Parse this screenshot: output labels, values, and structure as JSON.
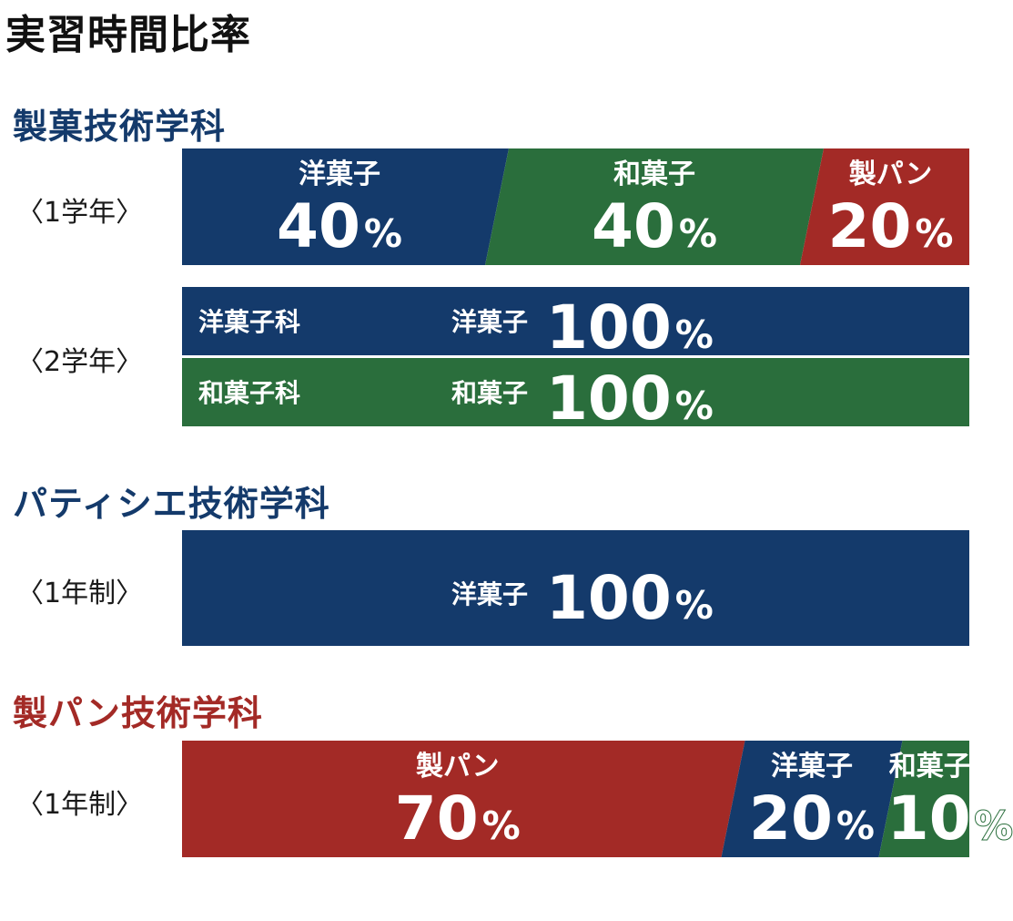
{
  "title": "実習時間比率",
  "colors": {
    "navy": "#143a6b",
    "green": "#2a6e3c",
    "red": "#a32a26"
  },
  "sections": [
    {
      "title": "製菓技術学科",
      "color": "#143a6b"
    },
    {
      "title": "パティシエ技術学科",
      "color": "#143a6b"
    },
    {
      "title": "製パン技術学科",
      "color": "#a32a26"
    }
  ],
  "row_labels": [
    "〈1学年〉",
    "〈2学年〉",
    "〈1年制〉",
    "〈1年制〉"
  ],
  "chart_data": [
    {
      "type": "bar",
      "stacked": true,
      "unit": "%",
      "section": "製菓技術学科",
      "row": "〈1学年〉",
      "segments": [
        {
          "name": "洋菓子",
          "value": 40,
          "color": "#143a6b"
        },
        {
          "name": "和菓子",
          "value": 40,
          "color": "#2a6e3c"
        },
        {
          "name": "製パン",
          "value": 20,
          "color": "#a32a26"
        }
      ]
    },
    {
      "type": "bar",
      "stacked": true,
      "unit": "%",
      "section": "製菓技術学科",
      "row": "〈2学年〉",
      "tracks": [
        {
          "track": "洋菓子科",
          "name": "洋菓子",
          "value": 100,
          "color": "#143a6b"
        },
        {
          "track": "和菓子科",
          "name": "和菓子",
          "value": 100,
          "color": "#2a6e3c"
        }
      ]
    },
    {
      "type": "bar",
      "stacked": true,
      "unit": "%",
      "section": "パティシエ技術学科",
      "row": "〈1年制〉",
      "segments": [
        {
          "name": "洋菓子",
          "value": 100,
          "color": "#143a6b"
        }
      ]
    },
    {
      "type": "bar",
      "stacked": true,
      "unit": "%",
      "section": "製パン技術学科",
      "row": "〈1年制〉",
      "segments": [
        {
          "name": "製パン",
          "value": 70,
          "color": "#a32a26"
        },
        {
          "name": "洋菓子",
          "value": 20,
          "color": "#143a6b"
        },
        {
          "name": "和菓子",
          "value": 10,
          "color": "#2a6e3c"
        }
      ]
    }
  ]
}
